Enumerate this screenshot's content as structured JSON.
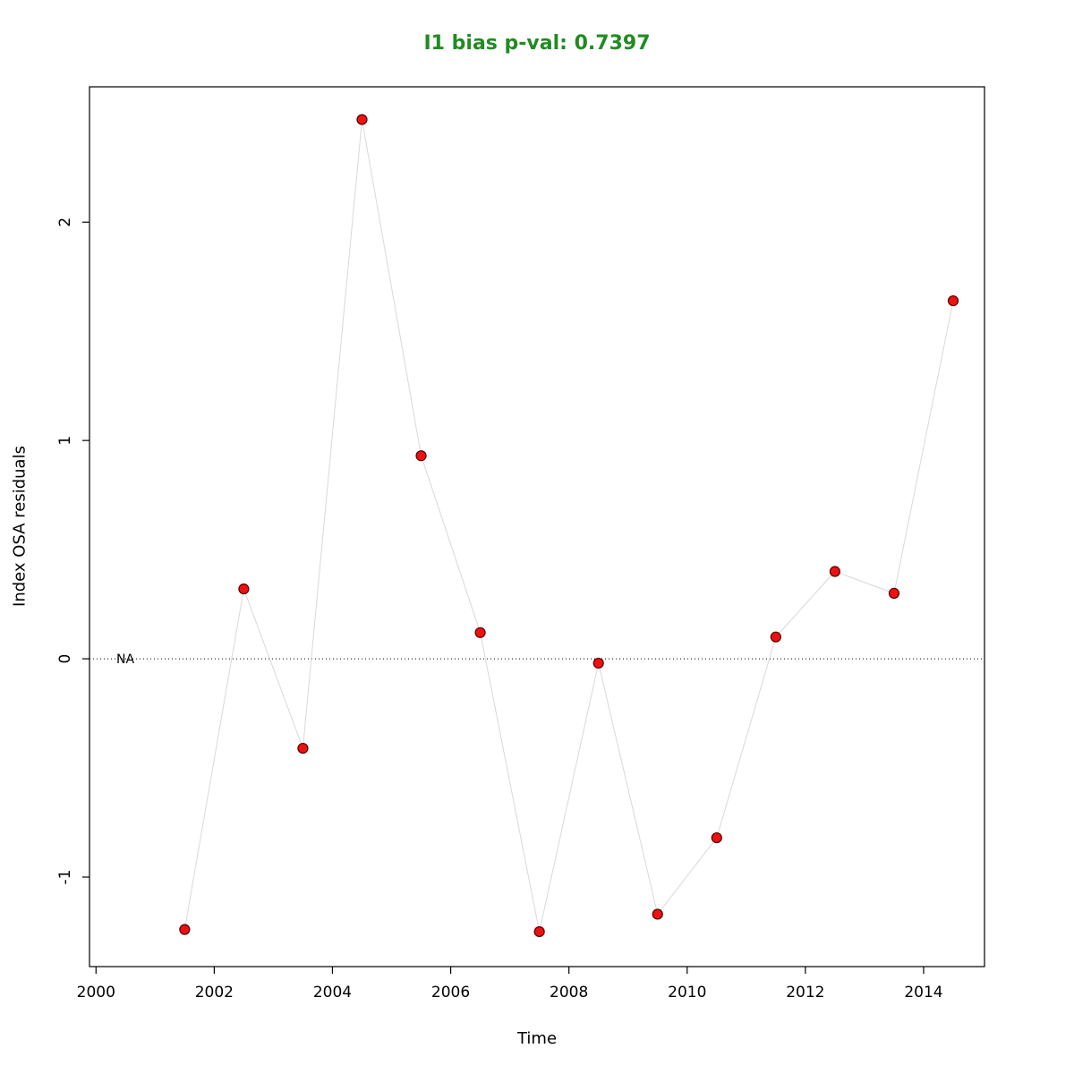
{
  "title": "I1 bias p-val: 0.7397",
  "title_color": "#228B22",
  "chart_data": {
    "type": "line",
    "title": "I1 bias p-val: 0.7397",
    "xlabel": "Time",
    "ylabel": "Index OSA residuals",
    "x": [
      2001.5,
      2002.5,
      2003.5,
      2004.5,
      2005.5,
      2006.5,
      2007.5,
      2008.5,
      2009.5,
      2010.5,
      2011.5,
      2012.5,
      2013.5,
      2014.5
    ],
    "values": [
      -1.24,
      0.32,
      -0.41,
      2.47,
      0.93,
      0.12,
      -1.25,
      -0.02,
      -1.17,
      -0.82,
      0.1,
      0.4,
      0.3,
      1.64
    ],
    "xlim": [
      1999.89,
      2015.03
    ],
    "ylim": [
      -1.41,
      2.62
    ],
    "xticks": [
      2000,
      2002,
      2004,
      2006,
      2008,
      2010,
      2012,
      2014
    ],
    "yticks": [
      -1,
      0,
      1,
      2
    ],
    "reference_line": {
      "y": 0,
      "label": "NA",
      "style": "dotted",
      "color": "#000000"
    },
    "grid": false,
    "legend": "none",
    "point_color": "#ee1111",
    "point_stroke": "#550000",
    "line_color": "#d9d9d9",
    "axis_color": "#000000"
  }
}
